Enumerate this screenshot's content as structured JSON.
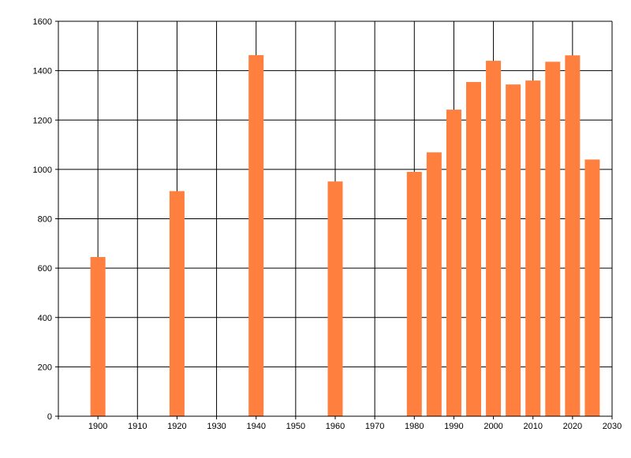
{
  "chart_data": {
    "type": "bar",
    "x": [
      1900,
      1920,
      1940,
      1960,
      1980,
      1985,
      1990,
      1995,
      2000,
      2005,
      2010,
      2015,
      2020,
      2025
    ],
    "values": [
      645,
      912,
      1463,
      951,
      990,
      1069,
      1242,
      1354,
      1440,
      1344,
      1360,
      1436,
      1462,
      1040
    ],
    "xlim": [
      1890,
      2030
    ],
    "ylim": [
      0,
      1600
    ],
    "xticks": [
      1900,
      1910,
      1920,
      1930,
      1940,
      1950,
      1960,
      1970,
      1980,
      1990,
      2000,
      2010,
      2020,
      2030
    ],
    "yticks": [
      0,
      200,
      400,
      600,
      800,
      1000,
      1200,
      1400,
      1600
    ],
    "grid": true,
    "bar_color": "#FF7F3F",
    "title": "",
    "xlabel": "",
    "ylabel": ""
  }
}
